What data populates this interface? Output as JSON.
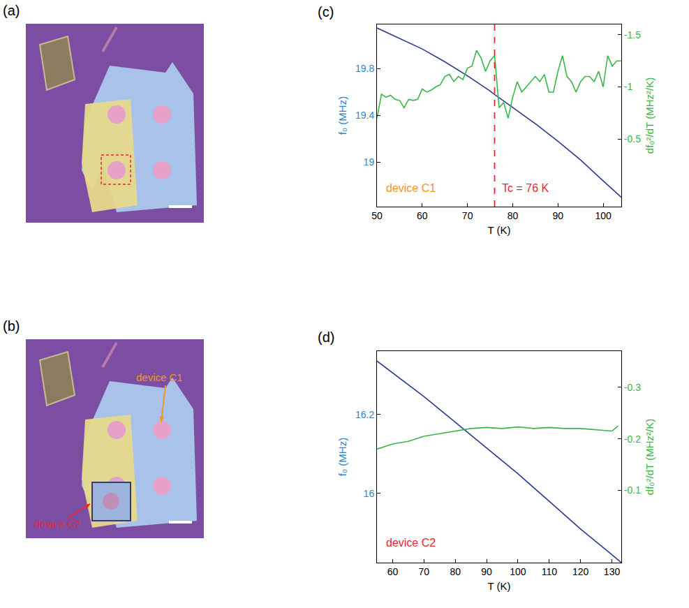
{
  "images": [
    {
      "letter": "(a)"
    },
    {
      "letter": "(b)",
      "labels": [
        {
          "text": "device C1",
          "color": "#f7941d"
        },
        {
          "text": "device C2",
          "color": "#e8272a"
        }
      ]
    }
  ],
  "chart_data": [
    {
      "letter": "(c)",
      "type": "line",
      "xlabel": "T (K)",
      "ylabel": "f₀ (MHz)",
      "y2label": "df₀²/dT (MHz²/K)",
      "xlim": [
        50,
        104
      ],
      "xticks": [
        50,
        60,
        70,
        80,
        90,
        100
      ],
      "ylim": [
        18.62,
        20.18
      ],
      "yticks": [
        19,
        19.4,
        19.8
      ],
      "y2lim": [
        0.15,
        -1.6
      ],
      "y2ticks": [
        -1.5,
        -1,
        -0.5
      ],
      "grid": false,
      "series": [
        {
          "axis": "y",
          "color": "#2b3990",
          "x": [
            50,
            55,
            60,
            65,
            70,
            75,
            76,
            80,
            85,
            90,
            95,
            100,
            104
          ],
          "values": [
            20.15,
            20.06,
            19.97,
            19.86,
            19.74,
            19.61,
            19.58,
            19.47,
            19.33,
            19.18,
            19.02,
            18.84,
            18.7
          ]
        },
        {
          "axis": "y2",
          "color": "#39b54a",
          "x": [
            50,
            51,
            52,
            53,
            54,
            55,
            56,
            57,
            58,
            59,
            60,
            61,
            62,
            63,
            64,
            65,
            66,
            67,
            68,
            69,
            70,
            71,
            72,
            73,
            74,
            75,
            76,
            77,
            78,
            79,
            80,
            81,
            82,
            83,
            84,
            85,
            86,
            87,
            88,
            89,
            90,
            91,
            92,
            93,
            94,
            95,
            96,
            97,
            98,
            99,
            100,
            101,
            102,
            103,
            104
          ],
          "values": [
            -0.7,
            -0.93,
            -0.9,
            -0.92,
            -0.88,
            -0.87,
            -0.8,
            -0.88,
            -0.87,
            -0.88,
            -0.98,
            -0.95,
            -0.97,
            -1.0,
            -1.02,
            -1.1,
            -1.12,
            -1.05,
            -1.1,
            -1.07,
            -1.18,
            -1.2,
            -1.35,
            -1.28,
            -1.15,
            -1.25,
            -1.3,
            -0.8,
            -0.85,
            -0.7,
            -0.9,
            -1.05,
            -0.95,
            -1.0,
            -1.05,
            -1.1,
            -1.05,
            -1.12,
            -0.95,
            -0.95,
            -1.15,
            -1.3,
            -1.1,
            -1.05,
            -0.95,
            -1.05,
            -1.1,
            -1.1,
            -1.05,
            -1.15,
            -1.0,
            -1.3,
            -1.2,
            -1.25,
            -1.25
          ]
        }
      ],
      "vlines": [
        {
          "x": 76,
          "color": "#e8272a",
          "line_style": "dash"
        }
      ],
      "annotations": [
        {
          "text": "device C1",
          "color": "#f7941d"
        },
        {
          "text": "Tc = 76 K",
          "color": "#e8272a"
        }
      ]
    },
    {
      "letter": "(d)",
      "type": "line",
      "xlabel": "T (K)",
      "ylabel": "f₀ (MHz)",
      "y2label": "df₀²/dT (MHz²/K)",
      "xlim": [
        55,
        133
      ],
      "xticks": [
        60,
        70,
        80,
        90,
        100,
        110,
        120,
        130
      ],
      "ylim": [
        15.825,
        16.36
      ],
      "yticks": [
        16,
        16.2
      ],
      "y2lim": [
        0.04,
        -0.37
      ],
      "y2ticks": [
        -0.3,
        -0.2,
        -0.1
      ],
      "grid": false,
      "series": [
        {
          "axis": "y",
          "color": "#2b3990",
          "x": [
            55,
            60,
            70,
            80,
            90,
            100,
            110,
            120,
            130,
            133
          ],
          "values": [
            16.335,
            16.305,
            16.245,
            16.18,
            16.115,
            16.05,
            15.98,
            15.91,
            15.845,
            15.825
          ]
        },
        {
          "axis": "y2",
          "color": "#39b54a",
          "x": [
            55,
            60,
            65,
            70,
            75,
            80,
            85,
            90,
            95,
            100,
            105,
            110,
            115,
            120,
            125,
            130,
            132
          ],
          "values": [
            -0.18,
            -0.19,
            -0.195,
            -0.205,
            -0.21,
            -0.215,
            -0.22,
            -0.222,
            -0.22,
            -0.223,
            -0.22,
            -0.222,
            -0.22,
            -0.22,
            -0.218,
            -0.215,
            -0.225
          ]
        }
      ],
      "vlines": [],
      "annotations": [
        {
          "text": "device C2",
          "color": "#e8272a"
        }
      ]
    }
  ]
}
